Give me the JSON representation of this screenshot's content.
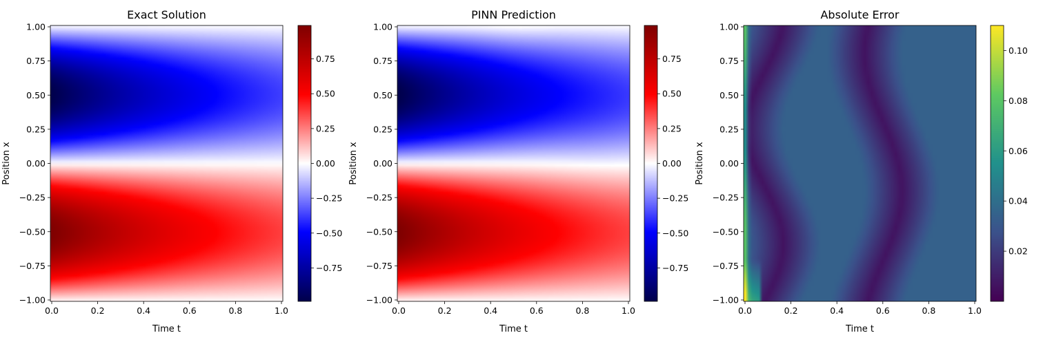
{
  "chart_data": [
    {
      "type": "heatmap",
      "title": "Exact Solution",
      "xlabel": "Time t",
      "ylabel": "Position x",
      "x_range": [
        0,
        1
      ],
      "y_range": [
        -1,
        1
      ],
      "xticks": [
        "0.0",
        "0.2",
        "0.4",
        "0.6",
        "0.8",
        "1.0"
      ],
      "yticks": [
        "1.00",
        "0.75",
        "0.50",
        "0.25",
        "0.00",
        "−0.25",
        "−0.50",
        "−0.75",
        "−1.00"
      ],
      "colormap": "seismic",
      "colorbar_range": [
        -0.99,
        0.99
      ],
      "colorbar_ticks": [
        "0.75",
        "0.50",
        "0.25",
        "0.00",
        "−0.25",
        "−0.50",
        "−0.75"
      ]
    },
    {
      "type": "heatmap",
      "title": "PINN Prediction",
      "xlabel": "Time t",
      "ylabel": "Position x",
      "x_range": [
        0,
        1
      ],
      "y_range": [
        -1,
        1
      ],
      "xticks": [
        "0.0",
        "0.2",
        "0.4",
        "0.6",
        "0.8",
        "1.0"
      ],
      "yticks": [
        "1.00",
        "0.75",
        "0.50",
        "0.25",
        "0.00",
        "−0.25",
        "−0.50",
        "−0.75",
        "−1.00"
      ],
      "colormap": "seismic",
      "colorbar_range": [
        -0.99,
        0.99
      ],
      "colorbar_ticks": [
        "0.75",
        "0.50",
        "0.25",
        "0.00",
        "−0.25",
        "−0.50",
        "−0.75"
      ]
    },
    {
      "type": "heatmap",
      "title": "Absolute Error",
      "xlabel": "Time t",
      "ylabel": "Position x",
      "x_range": [
        0,
        1
      ],
      "y_range": [
        -1,
        1
      ],
      "xticks": [
        "0.0",
        "0.2",
        "0.4",
        "0.6",
        "0.8",
        "1.0"
      ],
      "yticks": [
        "1.00",
        "0.75",
        "0.50",
        "0.25",
        "0.00",
        "−0.25",
        "−0.50",
        "−0.75",
        "−1.00"
      ],
      "colormap": "viridis",
      "colorbar_range": [
        0,
        0.11
      ],
      "colorbar_ticks": [
        "0.10",
        "0.08",
        "0.06",
        "0.04",
        "0.02"
      ]
    }
  ]
}
